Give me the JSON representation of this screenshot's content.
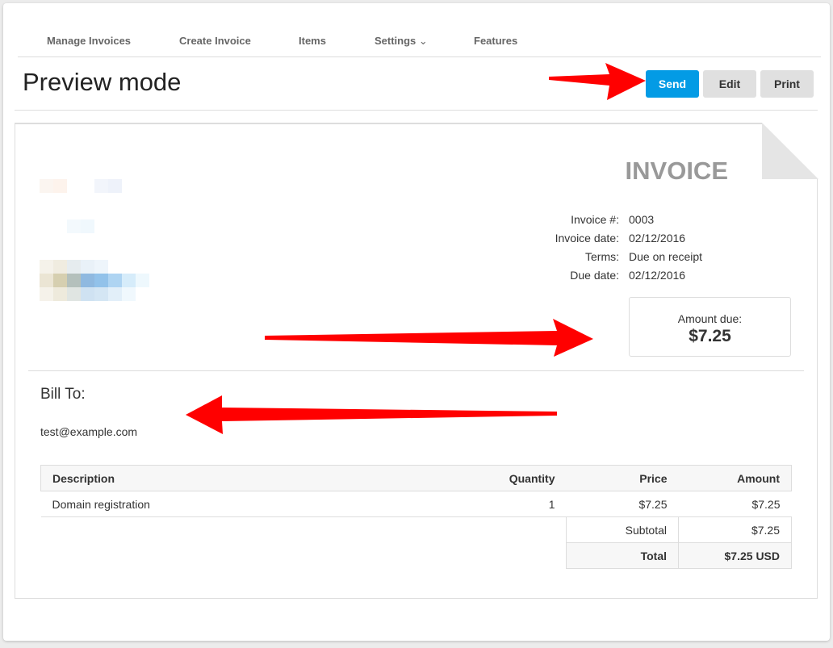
{
  "nav": {
    "items": [
      "Manage Invoices",
      "Create Invoice",
      "Items",
      "Settings",
      "Features"
    ]
  },
  "header": {
    "title": "Preview mode",
    "send": "Send",
    "edit": "Edit",
    "print": "Print"
  },
  "invoice": {
    "title": "INVOICE",
    "meta": [
      {
        "k": "Invoice #:",
        "v": "0003"
      },
      {
        "k": "Invoice date:",
        "v": "02/12/2016"
      },
      {
        "k": "Terms:",
        "v": "Due on receipt"
      },
      {
        "k": "Due date:",
        "v": "02/12/2016"
      }
    ],
    "amount_label": "Amount due:",
    "amount": "$7.25",
    "bill_to": "Bill To:",
    "email": "test@example.com",
    "table": {
      "headers": [
        "Description",
        "Quantity",
        "Price",
        "Amount"
      ],
      "rows": [
        [
          "Domain registration",
          "1",
          "$7.25",
          "$7.25"
        ]
      ],
      "subtotal_label": "Subtotal",
      "subtotal": "$7.25",
      "total_label": "Total",
      "total": "$7.25 USD"
    }
  },
  "colors": {
    "accent": "#039be5",
    "arrow": "#ff0000"
  }
}
